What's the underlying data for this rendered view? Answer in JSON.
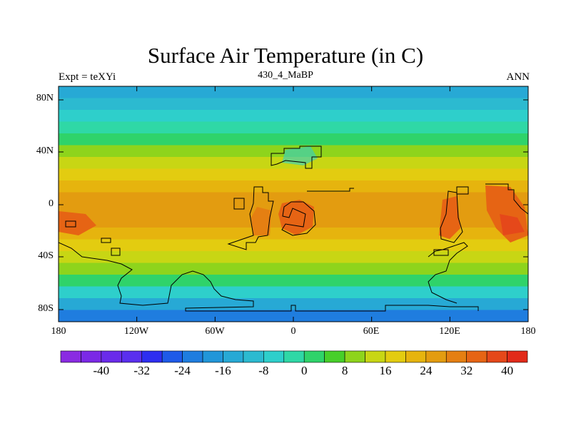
{
  "title": "Surface Air Temperature (in C)",
  "left_string": "Expt = teXYi",
  "center_string": "430_4_MaBP",
  "right_string": "ANN",
  "lat_labels": [
    "80N",
    "40N",
    "0",
    "40S",
    "80S"
  ],
  "lon_labels": [
    "180",
    "120W",
    "60W",
    "0",
    "60E",
    "120E",
    "180"
  ],
  "colorbar": {
    "colors": [
      "#8a2be2",
      "#7b29e6",
      "#6a2bea",
      "#5a2fee",
      "#2e2ef0",
      "#1e5ae8",
      "#1f7ddf",
      "#2196d9",
      "#27a9d5",
      "#2cbad0",
      "#2ecfcb",
      "#2fd8a6",
      "#2fd36a",
      "#47cf2a",
      "#8ed41c",
      "#c8d614",
      "#e3cc10",
      "#e6b40e",
      "#e39c10",
      "#e57f12",
      "#e66414",
      "#e5481a",
      "#e22b1a"
    ],
    "labels": [
      "-40",
      "-32",
      "-24",
      "-16",
      "-8",
      "0",
      "8",
      "16",
      "24",
      "32",
      "40"
    ]
  },
  "map_bands": {
    "colors_north_to_south": [
      "#27a9d5",
      "#2cbad0",
      "#2ecfcb",
      "#2fd8a6",
      "#2fd36a",
      "#8ed41c",
      "#c8d614",
      "#e3cc10",
      "#e6b40e",
      "#e39c10",
      "#e39c10",
      "#e39c10",
      "#e6b40e",
      "#e3cc10",
      "#c8d614",
      "#8ed41c",
      "#2fd36a",
      "#2ecfcb",
      "#27a9d5",
      "#1f7ddf"
    ]
  }
}
